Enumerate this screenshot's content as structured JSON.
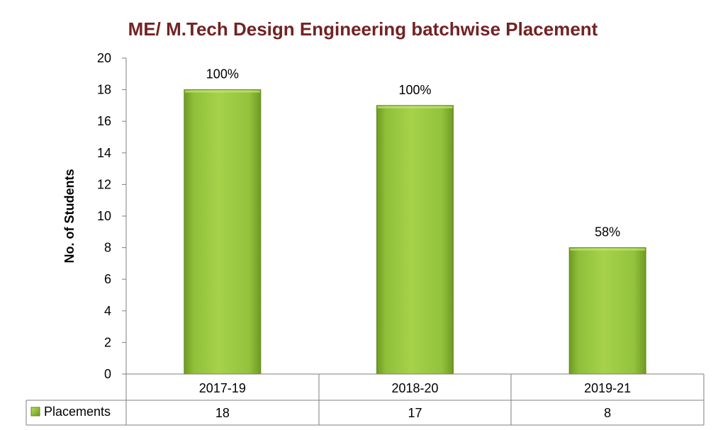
{
  "chart_data": {
    "type": "bar",
    "title": "ME/ M.Tech Design Engineering batchwise Placement",
    "ylabel": "No. of Students",
    "xlabel": "",
    "categories": [
      "2017-19",
      "2018-20",
      "2019-21"
    ],
    "series": [
      {
        "name": "Placements",
        "values": [
          18,
          17,
          8
        ],
        "data_labels": [
          "100%",
          "100%",
          "58%"
        ],
        "color": "#9acd32"
      }
    ],
    "ylim": [
      0,
      20
    ],
    "yticks": [
      0,
      2,
      4,
      6,
      8,
      10,
      12,
      14,
      16,
      18,
      20
    ],
    "grid": false,
    "legend": "data-table",
    "data_table": true
  }
}
